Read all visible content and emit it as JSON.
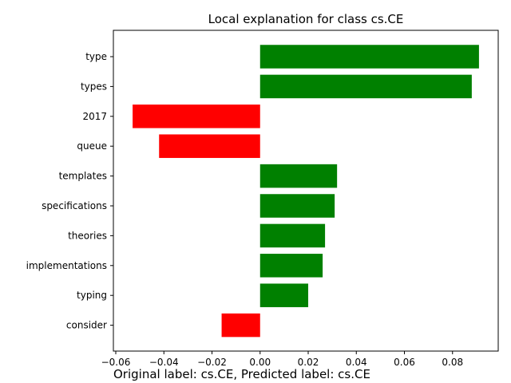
{
  "chart_data": {
    "type": "bar",
    "orientation": "horizontal",
    "title": "Local explanation for class cs.CE",
    "caption": "Original label: cs.CE, Predicted label: cs.CE",
    "categories": [
      "type",
      "types",
      "2017",
      "queue",
      "templates",
      "specifications",
      "theories",
      "implementations",
      "typing",
      "consider"
    ],
    "values": [
      0.091,
      0.088,
      -0.053,
      -0.042,
      0.032,
      0.031,
      0.027,
      0.026,
      0.02,
      -0.016
    ],
    "xlim": [
      -0.061,
      0.099
    ],
    "xticks": [
      -0.06,
      -0.04,
      -0.02,
      0.0,
      0.02,
      0.04,
      0.06,
      0.08
    ],
    "xtick_labels": [
      "−0.06",
      "−0.04",
      "−0.02",
      "0.00",
      "0.02",
      "0.04",
      "0.06",
      "0.08"
    ],
    "positive_color": "#008000",
    "negative_color": "#ff0000",
    "grid": false,
    "legend": "none"
  }
}
